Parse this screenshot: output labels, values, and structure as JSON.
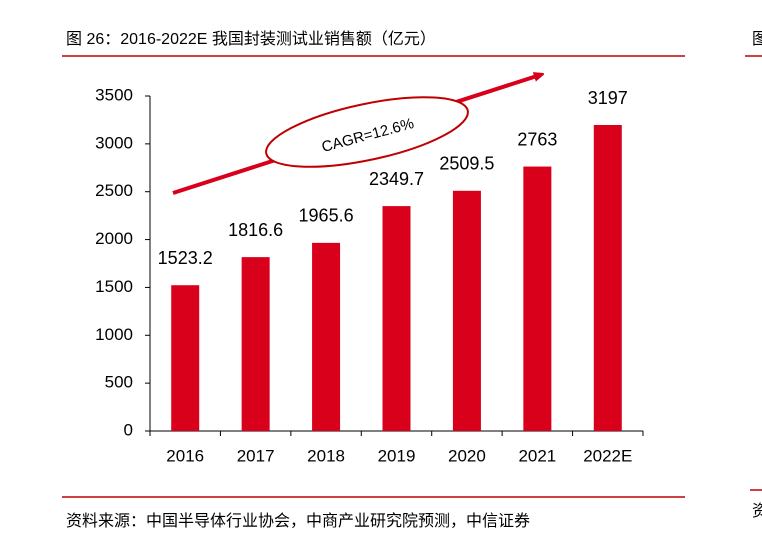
{
  "header": {
    "title": "图 26：2016-2022E 我国封装测试业销售额（亿元）"
  },
  "chart_data": {
    "type": "bar",
    "categories": [
      "2016",
      "2017",
      "2018",
      "2019",
      "2020",
      "2021",
      "2022E"
    ],
    "values": [
      1523.2,
      1816.6,
      1965.6,
      2349.7,
      2509.5,
      2763,
      3197
    ],
    "color": "#d9001b",
    "ylim": [
      0,
      3500
    ],
    "yticks": [
      0,
      500,
      1000,
      1500,
      2000,
      2500,
      3000,
      3500
    ],
    "annotation": "CAGR=12.6%"
  },
  "footer": {
    "source": "资料来源：中国半导体行业协会，中商产业研究院预测，中信证券"
  },
  "adjacent_fragments": [
    "图",
    "资"
  ]
}
